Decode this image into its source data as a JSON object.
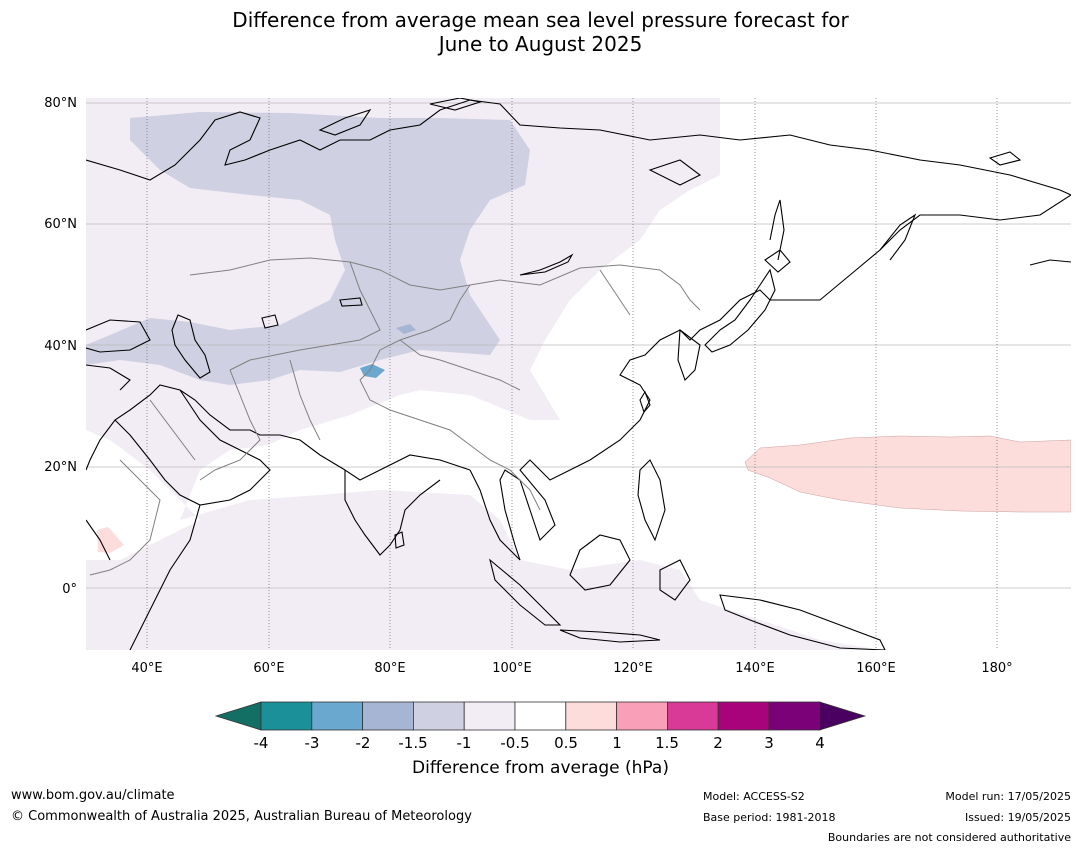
{
  "title": {
    "line1": "Difference from average mean sea level pressure forecast for",
    "line2": "June to August 2025"
  },
  "map": {
    "lat_ticks": [
      "80°N",
      "60°N",
      "40°N",
      "20°N",
      "0°"
    ],
    "lon_ticks": [
      "40°E",
      "60°E",
      "80°E",
      "100°E",
      "120°E",
      "140°E",
      "160°E",
      "180°"
    ]
  },
  "colorbar": {
    "label": "Difference from average (hPa)",
    "ticks": [
      "-4",
      "-3",
      "-2",
      "-1.5",
      "-1",
      "-0.5",
      "0.5",
      "1",
      "1.5",
      "2",
      "3",
      "4"
    ],
    "colors": [
      "#136f63",
      "#1b9099",
      "#6aa8d0",
      "#a7b5d4",
      "#d0d0e3",
      "#f2ecf5",
      "#ffffff",
      "#fddcdc",
      "#f9a0b8",
      "#d93a97",
      "#a8037a",
      "#7a0177",
      "#4a0060"
    ]
  },
  "footer": {
    "website": "www.bom.gov.au/climate",
    "copyright": "© Commonwealth of Australia 2025, Australian Bureau of Meteorology",
    "model": "Model: ACCESS-S2",
    "base_period": "Base period: 1981-2018",
    "model_run": "Model run: 17/05/2025",
    "issued": "Issued: 19/05/2025",
    "disclaimer": "Boundaries are not considered authoritative"
  }
}
